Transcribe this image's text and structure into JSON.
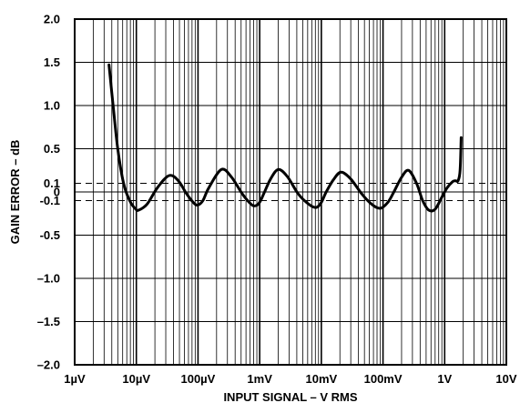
{
  "chart_data": {
    "type": "line",
    "xscale": "log",
    "xlim": [
      1e-06,
      10
    ],
    "ylim": [
      -2.0,
      2.0
    ],
    "grid": true,
    "xlabel": "INPUT SIGNAL – V RMS",
    "ylabel": "GAIN ERROR – dB",
    "x_ticks": [
      {
        "value": 1e-06,
        "label": "1µV"
      },
      {
        "value": 1e-05,
        "label": "10µV"
      },
      {
        "value": 0.0001,
        "label": "100µV"
      },
      {
        "value": 0.001,
        "label": "1mV"
      },
      {
        "value": 0.01,
        "label": "10mV"
      },
      {
        "value": 0.1,
        "label": "100mV"
      },
      {
        "value": 1,
        "label": "1V"
      },
      {
        "value": 10,
        "label": "10V"
      }
    ],
    "y_ticks": [
      {
        "value": 2.0,
        "label": "2.0"
      },
      {
        "value": 1.5,
        "label": "1.5"
      },
      {
        "value": 1.0,
        "label": "1.0"
      },
      {
        "value": 0.5,
        "label": "0.5"
      },
      {
        "value": 0.1,
        "label": "0.1"
      },
      {
        "value": 0,
        "label": "0"
      },
      {
        "value": -0.1,
        "label": "-0.1"
      },
      {
        "value": -0.5,
        "label": "-0.5"
      },
      {
        "value": -1.0,
        "label": "–1.0"
      },
      {
        "value": -1.5,
        "label": "–1.5"
      },
      {
        "value": -2.0,
        "label": "–2.0"
      }
    ],
    "reference_lines": [
      0.1,
      -0.1
    ],
    "series": [
      {
        "color": "#000000",
        "x": [
          3.6e-06,
          4.2e-06,
          5e-06,
          6.2e-06,
          7.8e-06,
          9.8e-06,
          1.1e-05,
          1.5e-05,
          2.2e-05,
          3.4e-05,
          4.8e-05,
          6.5e-05,
          8.6e-05,
          0.0001,
          0.00012,
          0.00015,
          0.00024,
          0.00035,
          0.00052,
          0.00072,
          0.00085,
          0.001,
          0.0012,
          0.0015,
          0.002,
          0.0028,
          0.0042,
          0.0062,
          0.0082,
          0.01,
          0.012,
          0.016,
          0.021,
          0.03,
          0.045,
          0.065,
          0.09,
          0.12,
          0.15,
          0.2,
          0.26,
          0.35,
          0.44,
          0.55,
          0.7,
          0.9,
          1.1,
          1.35,
          1.5,
          1.65,
          1.78,
          1.85
        ],
        "y": [
          1.47,
          1.0,
          0.5,
          0.1,
          -0.1,
          -0.2,
          -0.21,
          -0.14,
          0.05,
          0.19,
          0.13,
          -0.02,
          -0.13,
          -0.15,
          -0.1,
          0.05,
          0.26,
          0.17,
          -0.02,
          -0.14,
          -0.16,
          -0.12,
          0.0,
          0.15,
          0.26,
          0.18,
          -0.02,
          -0.14,
          -0.18,
          -0.12,
          0.0,
          0.15,
          0.23,
          0.15,
          -0.02,
          -0.14,
          -0.19,
          -0.12,
          0.0,
          0.17,
          0.25,
          0.1,
          -0.1,
          -0.21,
          -0.2,
          -0.06,
          0.05,
          0.12,
          0.13,
          0.13,
          0.25,
          0.63
        ]
      }
    ]
  }
}
